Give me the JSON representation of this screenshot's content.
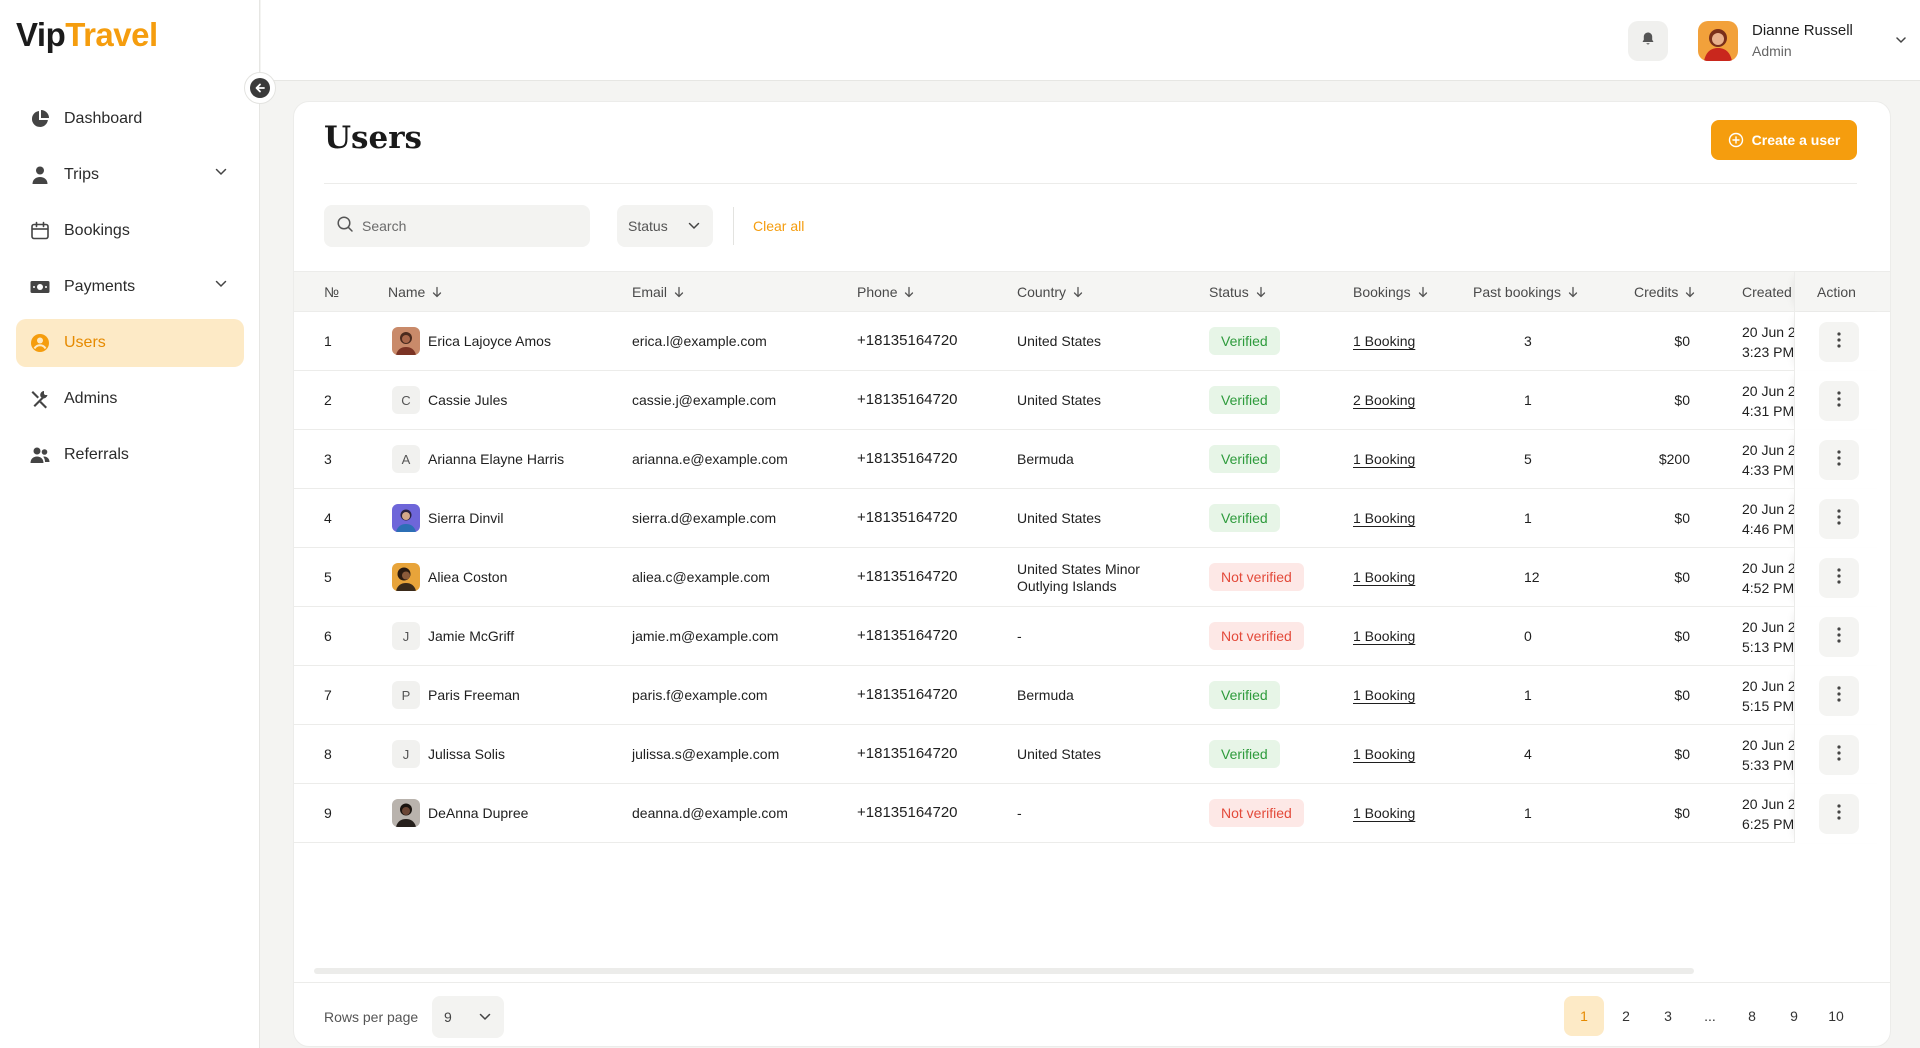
{
  "brand": {
    "part1": "Vip",
    "part2": "Travel"
  },
  "sidebar": {
    "items": [
      {
        "label": "Dashboard",
        "icon": "pie-chart-icon",
        "expandable": false,
        "active": false
      },
      {
        "label": "Trips",
        "icon": "person-icon",
        "expandable": true,
        "active": false
      },
      {
        "label": "Bookings",
        "icon": "calendar-icon",
        "expandable": false,
        "active": false
      },
      {
        "label": "Payments",
        "icon": "money-icon",
        "expandable": true,
        "active": false
      },
      {
        "label": "Users",
        "icon": "user-circle-icon",
        "expandable": false,
        "active": true
      },
      {
        "label": "Admins",
        "icon": "tools-icon",
        "expandable": false,
        "active": false
      },
      {
        "label": "Referrals",
        "icon": "people-icon",
        "expandable": false,
        "active": false
      }
    ]
  },
  "header": {
    "user_name": "Dianne Russell",
    "user_role": "Admin"
  },
  "page": {
    "title": "Users",
    "create_label": "Create a user"
  },
  "filters": {
    "search_placeholder": "Search",
    "status_label": "Status",
    "clear_label": "Clear all"
  },
  "table": {
    "columns": {
      "no": "№",
      "name": "Name",
      "email": "Email",
      "phone": "Phone",
      "country": "Country",
      "status": "Status",
      "bookings": "Bookings",
      "past": "Past bookings",
      "credits": "Credits",
      "created": "Created",
      "action": "Action"
    },
    "rows": [
      {
        "no": "1",
        "avatar": "photo",
        "name": "Erica Lajoyce Amos",
        "email": "erica.l@example.com",
        "phone": "+18135164720",
        "country1": "United States",
        "country2": "",
        "status": "Verified",
        "verified": true,
        "bookings": "1 Booking",
        "past": "3",
        "credits": "$0",
        "date": "20 Jun 2",
        "time": "3:23 PM"
      },
      {
        "no": "2",
        "avatar": "C",
        "name": "Cassie Jules",
        "email": "cassie.j@example.com",
        "phone": "+18135164720",
        "country1": "United States",
        "country2": "",
        "status": "Verified",
        "verified": true,
        "bookings": "2 Booking",
        "past": "1",
        "credits": "$0",
        "date": "20 Jun 2",
        "time": "4:31 PM"
      },
      {
        "no": "3",
        "avatar": "A",
        "name": "Arianna Elayne Harris",
        "email": "arianna.e@example.com",
        "phone": "+18135164720",
        "country1": "Bermuda",
        "country2": "",
        "status": "Verified",
        "verified": true,
        "bookings": "1 Booking",
        "past": "5",
        "credits": "$200",
        "date": "20 Jun 2",
        "time": "4:33 PM"
      },
      {
        "no": "4",
        "avatar": "photo",
        "name": "Sierra Dinvil",
        "email": "sierra.d@example.com",
        "phone": "+18135164720",
        "country1": "United States",
        "country2": "",
        "status": "Verified",
        "verified": true,
        "bookings": "1 Booking",
        "past": "1",
        "credits": "$0",
        "date": "20 Jun 2",
        "time": "4:46 PM"
      },
      {
        "no": "5",
        "avatar": "photo",
        "name": "Aliea Coston",
        "email": "aliea.c@example.com",
        "phone": "+18135164720",
        "country1": "United States Minor",
        "country2": "Outlying Islands",
        "status": "Not verified",
        "verified": false,
        "bookings": "1 Booking",
        "past": "12",
        "credits": "$0",
        "date": "20 Jun 2",
        "time": "4:52 PM"
      },
      {
        "no": "6",
        "avatar": "J",
        "name": "Jamie McGriff",
        "email": "jamie.m@example.com",
        "phone": "+18135164720",
        "country1": "-",
        "country2": "",
        "status": "Not verified",
        "verified": false,
        "bookings": "1 Booking",
        "past": "0",
        "credits": "$0",
        "date": "20 Jun 2",
        "time": "5:13 PM"
      },
      {
        "no": "7",
        "avatar": "P",
        "name": "Paris Freeman",
        "email": "paris.f@example.com",
        "phone": "+18135164720",
        "country1": "Bermuda",
        "country2": "",
        "status": "Verified",
        "verified": true,
        "bookings": "1 Booking",
        "past": "1",
        "credits": "$0",
        "date": "20 Jun 2",
        "time": "5:15 PM"
      },
      {
        "no": "8",
        "avatar": "J",
        "name": "Julissa Solis",
        "email": "julissa.s@example.com",
        "phone": "+18135164720",
        "country1": "United States",
        "country2": "",
        "status": "Verified",
        "verified": true,
        "bookings": "1 Booking",
        "past": "4",
        "credits": "$0",
        "date": "20 Jun 2",
        "time": "5:33 PM"
      },
      {
        "no": "9",
        "avatar": "photo",
        "name": "DeAnna Dupree",
        "email": "deanna.d@example.com",
        "phone": "+18135164720",
        "country1": "-",
        "country2": "",
        "status": "Not verified",
        "verified": false,
        "bookings": "1 Booking",
        "past": "1",
        "credits": "$0",
        "date": "20 Jun 2",
        "time": "6:25 PM"
      }
    ]
  },
  "footer": {
    "rows_per_page_label": "Rows per page",
    "rows_per_page_value": "9",
    "pages": [
      "1",
      "2",
      "3",
      "...",
      "8",
      "9",
      "10"
    ],
    "current_page": "1"
  },
  "colors": {
    "accent": "#f59d0e",
    "active_bg": "#fdeac6",
    "verified_text": "#2e9b3c",
    "verified_bg": "#e7f5e7",
    "unverified_text": "#e34a3a",
    "unverified_bg": "#fde8e6"
  }
}
